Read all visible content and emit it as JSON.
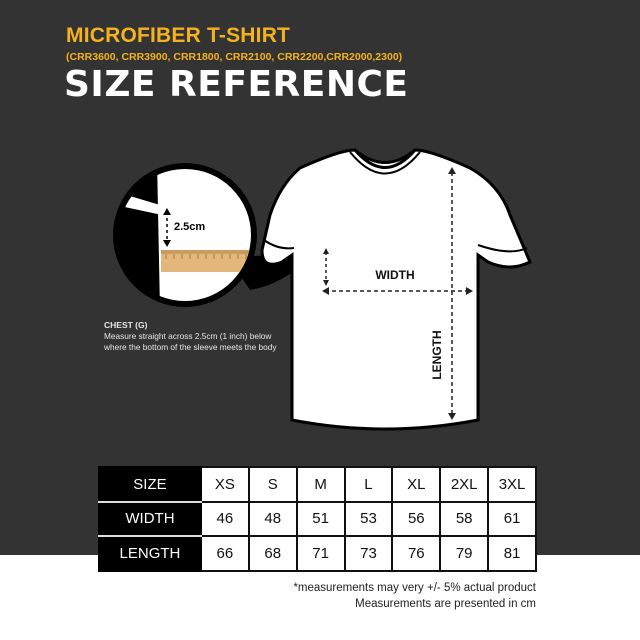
{
  "header": {
    "title": "MICROFIBER T-SHIRT",
    "models": "(CRR3600, CRR3900, CRR1800, CRR2100, CRR2200,CRR2000,2300)",
    "heading": "SIZE REFERENCE"
  },
  "diagram": {
    "offset_label": "2.5cm",
    "width_label": "WIDTH",
    "length_label": "LENGTH",
    "chest_title": "CHEST (G)",
    "chest_text": "Measure straight across 2.5cm (1 inch) below where the bottom of the sleeve meets the body"
  },
  "table": {
    "header_label": "SIZE",
    "sizes": [
      "XS",
      "S",
      "M",
      "L",
      "XL",
      "2XL",
      "3XL"
    ],
    "rows": [
      {
        "label": "WIDTH",
        "values": [
          "46",
          "48",
          "51",
          "53",
          "56",
          "58",
          "61"
        ]
      },
      {
        "label": "LENGTH",
        "values": [
          "66",
          "68",
          "71",
          "73",
          "76",
          "79",
          "81"
        ]
      }
    ]
  },
  "notes": {
    "line1": "*measurements may very +/- 5% actual product",
    "line2": "Measurements are presented in cm"
  },
  "colors": {
    "background": "#333333",
    "accent": "#f5b21f"
  }
}
